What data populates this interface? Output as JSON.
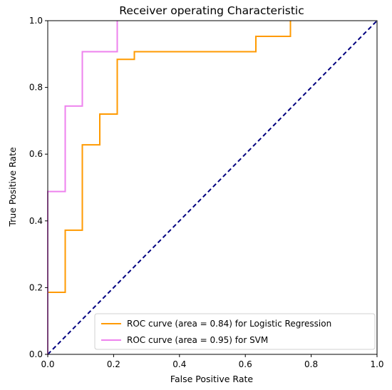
{
  "chart_data": {
    "type": "line",
    "title": "Receiver operating Characteristic",
    "xlabel": "False Positive Rate",
    "ylabel": "True Positive Rate",
    "xlim": [
      0.0,
      1.0
    ],
    "ylim": [
      0.0,
      1.0
    ],
    "xticks": [
      "0.0",
      "0.2",
      "0.4",
      "0.6",
      "0.8",
      "1.0"
    ],
    "yticks": [
      "0.0",
      "0.2",
      "0.4",
      "0.6",
      "0.8",
      "1.0"
    ],
    "grid": false,
    "legend_position": "lower-right",
    "series": [
      {
        "name": "ROC curve (area = 0.84) for Logistic Regression",
        "color": "#ff9a00",
        "x": [
          0.0,
          0.0,
          0.053,
          0.053,
          0.105,
          0.105,
          0.158,
          0.158,
          0.211,
          0.211,
          0.263,
          0.263,
          0.632,
          0.632,
          0.737,
          0.737
        ],
        "y": [
          0.0,
          0.186,
          0.186,
          0.372,
          0.372,
          0.628,
          0.628,
          0.72,
          0.72,
          0.884,
          0.884,
          0.907,
          0.907,
          0.953,
          0.953,
          1.0
        ]
      },
      {
        "name": "ROC curve (area = 0.95) for SVM",
        "color": "#ee82ee",
        "x": [
          0.0,
          0.0,
          0.053,
          0.053,
          0.105,
          0.105,
          0.211,
          0.211
        ],
        "y": [
          0.0,
          0.488,
          0.488,
          0.744,
          0.744,
          0.907,
          0.907,
          1.0
        ]
      }
    ],
    "reference_line": {
      "x": [
        0.0,
        1.0
      ],
      "y": [
        0.0,
        1.0
      ],
      "color": "#000080",
      "style": "dashed"
    }
  }
}
